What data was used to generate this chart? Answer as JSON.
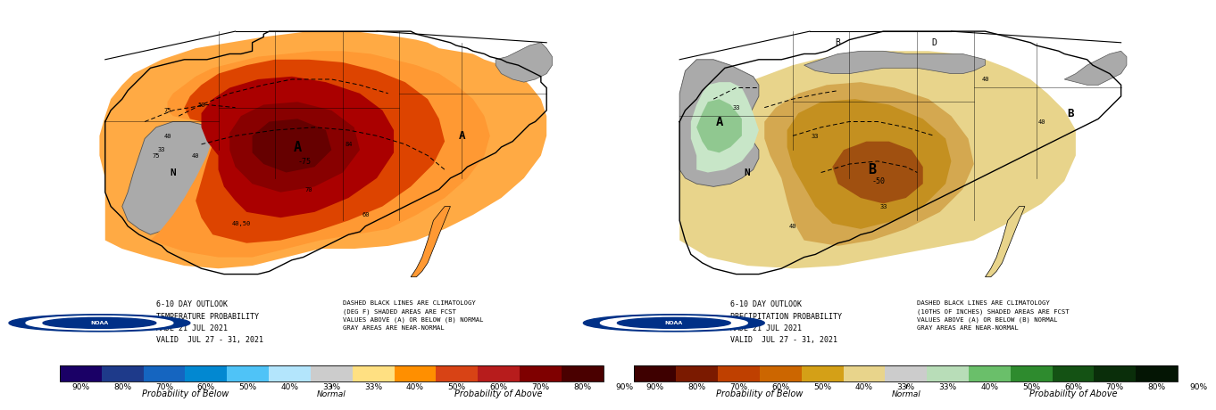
{
  "background_color": "#ffffff",
  "panels": [
    {
      "type": "temperature",
      "meta_text_line1": "6-10 DAY OUTLOOK",
      "meta_text_line2": "TEMPERATURE PROBABILITY",
      "meta_text_line3": "MADE 21 JUL 2021",
      "meta_text_line4": "VALID  JUL 27 - 31, 2021",
      "note_text": "DASHED BLACK LINES ARE CLIMATOLOGY\n(DEG F) SHADED AREAS ARE FCST\nVALUES ABOVE (A) OR BELOW (B) NORMAL\nGRAY AREAS ARE NEAR-NORMAL",
      "colorbar_colors": [
        "#1a0066",
        "#1e3a8a",
        "#1565c0",
        "#0288d1",
        "#4fc3f7",
        "#b3e5fc",
        "#cccccc",
        "#ffe082",
        "#ff8f00",
        "#d84315",
        "#b71c1c",
        "#7f0000",
        "#4a0000"
      ],
      "colorbar_labels": [
        "90%",
        "80%",
        "70%",
        "60%",
        "50%",
        "40%",
        "33%",
        "33%",
        "40%",
        "50%",
        "60%",
        "70%",
        "80%",
        "90%"
      ],
      "label_below": "Probability of Below",
      "label_normal": "Normal",
      "label_above": "Probability of Above"
    },
    {
      "type": "precipitation",
      "meta_text_line1": "6-10 DAY OUTLOOK",
      "meta_text_line2": "PRECIPITATION PROBABILITY",
      "meta_text_line3": "MADE 21 JUL 2021",
      "meta_text_line4": "VALID  JUL 27 - 31, 2021",
      "note_text": "DASHED BLACK LINES ARE CLIMATOLOGY\n(10THS OF INCHES) SHADED AREAS ARE FCST\nVALUES ABOVE (A) OR BELOW (B) NORMAL\nGRAY AREAS ARE NEAR-NORMAL",
      "colorbar_colors": [
        "#3e0000",
        "#7b1a00",
        "#bf4000",
        "#cc6600",
        "#d4a017",
        "#e8d48b",
        "#cccccc",
        "#b8ddb8",
        "#6abf6a",
        "#2e8b2e",
        "#145214",
        "#0a2e0a",
        "#041504"
      ],
      "colorbar_labels": [
        "90%",
        "80%",
        "70%",
        "60%",
        "50%",
        "40%",
        "33%",
        "33%",
        "40%",
        "50%",
        "60%",
        "70%",
        "80%",
        "90%"
      ],
      "label_below": "Probability of Below",
      "label_normal": "Normal",
      "label_above": "Probability of Above"
    }
  ],
  "temp_colors": {
    "below_40": "#ffcc80",
    "at_40": "#ff9933",
    "at_50": "#e65c00",
    "at_60_core": "#cc0000",
    "at_70_core": "#990000",
    "at_80_core": "#7a0026",
    "gray_near_normal": "#aaaaaa",
    "northeast_gray": "#aaaaaa",
    "light_orange": "#ffaa55"
  },
  "precip_colors": {
    "gray_west": "#aaaaaa",
    "green_40": "#c8e6c8",
    "green_33": "#a5d6a7",
    "green_core": "#81c784",
    "tan_33": "#d4b483",
    "tan_40": "#e8c97a",
    "tan_50": "#c8a020",
    "brown_core": "#a0620a",
    "light_tan": "#e8d48b",
    "northeast_gray": "#aaaaaa"
  }
}
